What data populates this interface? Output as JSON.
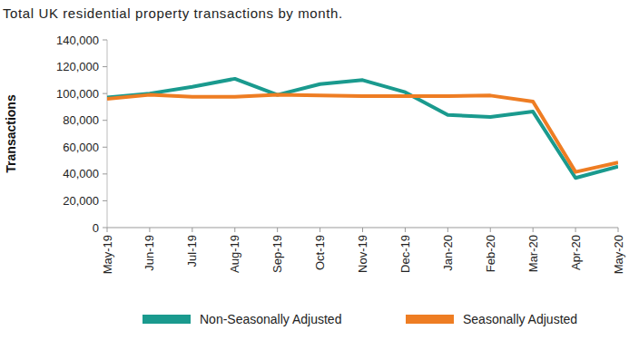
{
  "chart_data": {
    "type": "line",
    "title": "Total UK residential property transactions by month.",
    "y_label": "Transactions",
    "categories": [
      "May-19",
      "Jun-19",
      "Jul-19",
      "Aug-19",
      "Sep-19",
      "Oct-19",
      "Nov-19",
      "Dec-19",
      "Jan-20",
      "Feb-20",
      "Mar-20",
      "Apr-20",
      "May-20"
    ],
    "series": [
      {
        "name": "Non-Seasonally Adjusted",
        "color": "#1a9a8e",
        "values": [
          97000,
          100000,
          105000,
          111000,
          99000,
          107000,
          110000,
          101000,
          84000,
          82500,
          86500,
          37000,
          45500
        ]
      },
      {
        "name": "Seasonally Adjusted",
        "color": "#ee7d23",
        "values": [
          96000,
          99000,
          97500,
          97500,
          99000,
          98500,
          98000,
          98000,
          98000,
          98500,
          94000,
          41500,
          48500
        ]
      }
    ],
    "ylim": [
      0,
      140000
    ],
    "yticks": [
      0,
      {
        "value": 20000,
        "label": "20,000"
      },
      {
        "value": 40000,
        "label": "40,000"
      },
      {
        "value": 60000,
        "label": "60,000"
      },
      {
        "value": 80000,
        "label": "80,000"
      },
      {
        "value": 100000,
        "label": "100,000"
      },
      {
        "value": 120000,
        "label": "120,000"
      },
      {
        "value": 140000,
        "label": "140,000"
      }
    ],
    "grid": false,
    "legend": "bottom"
  }
}
